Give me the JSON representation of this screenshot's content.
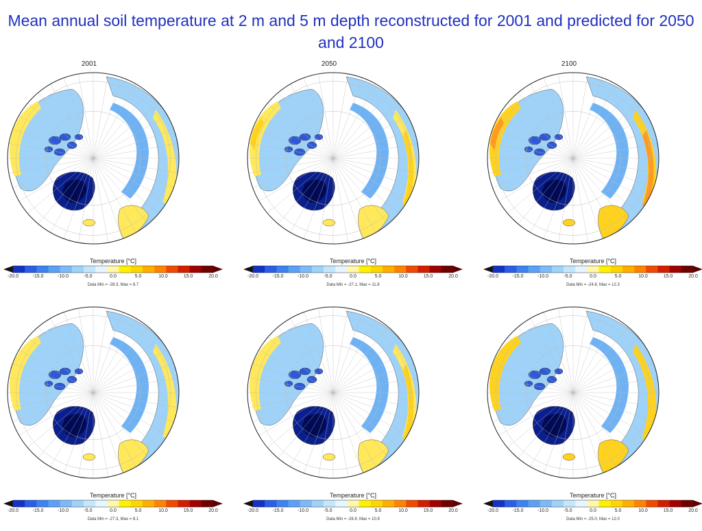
{
  "title": "Mean annual soil temperature at 2 m and 5 m depth reconstructed for 2001 and predicted for 2050 and 2100",
  "colorbar": {
    "label": "Temperature [°C]",
    "ticks": [
      "-20.0",
      "-15.0",
      "-10.0",
      "-5.0",
      "0.0",
      "5.0",
      "10.0",
      "15.0",
      "20.0"
    ],
    "colors": [
      "#1432c8",
      "#2a5ee6",
      "#3c82f0",
      "#5aa0f5",
      "#7cbaf7",
      "#9fd2f8",
      "#c4e6fb",
      "#e6f6ff",
      "#fff7aa",
      "#fff000",
      "#ffd400",
      "#ffae00",
      "#ff8200",
      "#f04a00",
      "#d21e00",
      "#a00000",
      "#6e0000"
    ]
  },
  "panels": [
    {
      "year": "2001",
      "data_range": "Data Min = -28.3, Max = 8.7",
      "warmth": 0.15
    },
    {
      "year": "2050",
      "data_range": "Data Min = -27.1, Max = 11.8",
      "warmth": 0.45
    },
    {
      "year": "2100",
      "data_range": "Data Min = -24.8, Max = 12.3",
      "warmth": 0.8
    },
    {
      "year": "",
      "data_range": "Data Min = -27.3, Max = 8.1",
      "warmth": 0.1
    },
    {
      "year": "",
      "data_range": "Data Min = -26.9, Max = 10.9",
      "warmth": 0.35
    },
    {
      "year": "",
      "data_range": "Data Min = -25.0, Max = 12.0",
      "warmth": 0.55
    }
  ]
}
